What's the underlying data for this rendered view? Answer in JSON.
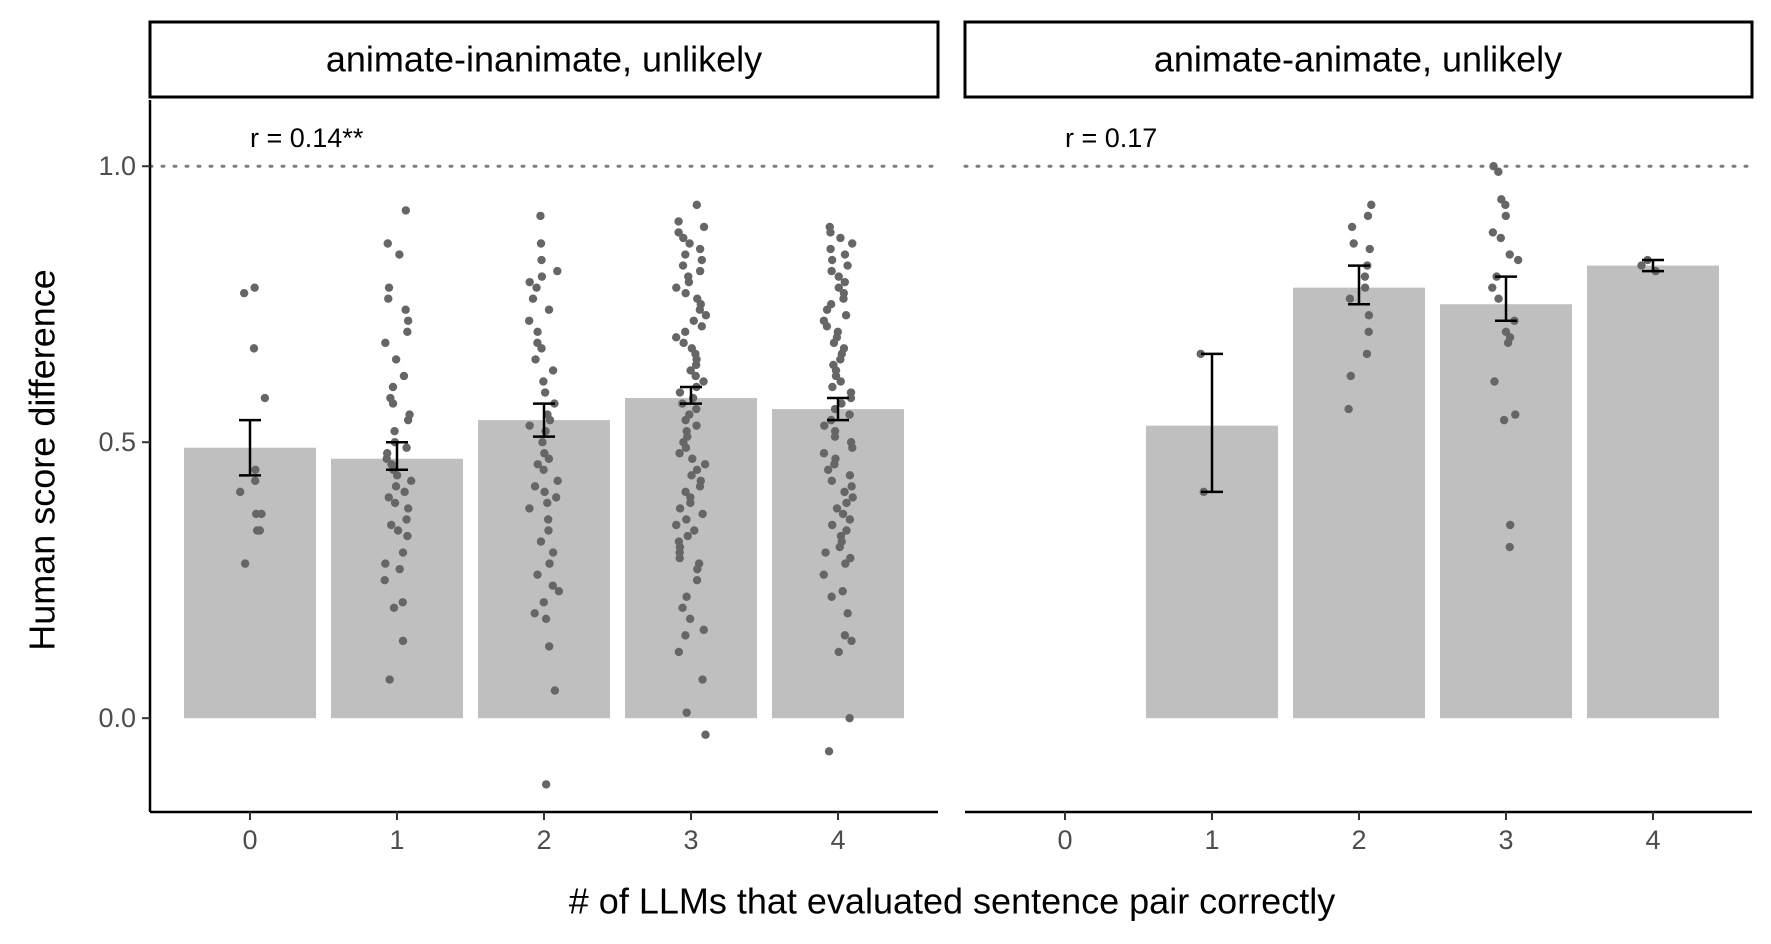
{
  "chart_data": {
    "type": "bar",
    "xlabel": "# of LLMs that evaluated sentence pair correctly",
    "ylabel": "Human score difference",
    "x_ticks": [
      "0",
      "1",
      "2",
      "3",
      "4"
    ],
    "y_ticks": [
      "0.0",
      "0.5",
      "1.0"
    ],
    "ylim": [
      -0.17,
      1.12
    ],
    "reference_line": {
      "y": 1.0,
      "style": "dotted"
    },
    "grid": false,
    "bar_color": "#bfbfbf",
    "point_color": "#666666",
    "errorbar_color": "#000000",
    "panels": [
      {
        "strip": "animate-inanimate, unlikely",
        "annotation": "r = 0.14**",
        "bars": [
          {
            "x": 0,
            "mean": 0.49,
            "ci": [
              0.44,
              0.54
            ],
            "points": [
              0.78,
              0.77,
              0.67,
              0.58,
              0.45,
              0.43,
              0.41,
              0.37,
              0.37,
              0.34,
              0.34,
              0.28
            ]
          },
          {
            "x": 1,
            "mean": 0.47,
            "ci": [
              0.45,
              0.5
            ],
            "points": [
              0.92,
              0.86,
              0.84,
              0.78,
              0.76,
              0.74,
              0.72,
              0.7,
              0.68,
              0.65,
              0.62,
              0.6,
              0.58,
              0.57,
              0.55,
              0.54,
              0.52,
              0.5,
              0.49,
              0.48,
              0.47,
              0.46,
              0.45,
              0.44,
              0.43,
              0.42,
              0.41,
              0.4,
              0.39,
              0.38,
              0.36,
              0.35,
              0.34,
              0.33,
              0.3,
              0.28,
              0.27,
              0.25,
              0.21,
              0.2,
              0.14,
              0.07
            ]
          },
          {
            "x": 2,
            "mean": 0.54,
            "ci": [
              0.51,
              0.57
            ],
            "points": [
              0.91,
              0.86,
              0.83,
              0.81,
              0.8,
              0.79,
              0.78,
              0.76,
              0.74,
              0.72,
              0.7,
              0.68,
              0.67,
              0.65,
              0.63,
              0.61,
              0.59,
              0.57,
              0.55,
              0.54,
              0.53,
              0.52,
              0.5,
              0.48,
              0.47,
              0.46,
              0.45,
              0.43,
              0.42,
              0.41,
              0.4,
              0.39,
              0.38,
              0.36,
              0.34,
              0.32,
              0.3,
              0.28,
              0.26,
              0.24,
              0.23,
              0.21,
              0.19,
              0.18,
              0.13,
              0.05,
              -0.12
            ]
          },
          {
            "x": 3,
            "mean": 0.58,
            "ci": [
              0.57,
              0.6
            ],
            "points": [
              0.93,
              0.9,
              0.89,
              0.88,
              0.87,
              0.86,
              0.85,
              0.84,
              0.83,
              0.82,
              0.81,
              0.8,
              0.79,
              0.78,
              0.77,
              0.76,
              0.75,
              0.74,
              0.73,
              0.72,
              0.71,
              0.7,
              0.69,
              0.68,
              0.67,
              0.66,
              0.65,
              0.64,
              0.63,
              0.62,
              0.61,
              0.6,
              0.59,
              0.58,
              0.57,
              0.56,
              0.55,
              0.54,
              0.53,
              0.52,
              0.51,
              0.5,
              0.49,
              0.48,
              0.47,
              0.46,
              0.45,
              0.44,
              0.43,
              0.42,
              0.41,
              0.4,
              0.39,
              0.38,
              0.37,
              0.36,
              0.35,
              0.34,
              0.33,
              0.32,
              0.31,
              0.3,
              0.29,
              0.28,
              0.27,
              0.25,
              0.22,
              0.2,
              0.18,
              0.16,
              0.15,
              0.12,
              0.07,
              0.01,
              -0.03
            ]
          },
          {
            "x": 4,
            "mean": 0.56,
            "ci": [
              0.54,
              0.58
            ],
            "points": [
              0.89,
              0.88,
              0.87,
              0.86,
              0.85,
              0.84,
              0.83,
              0.82,
              0.81,
              0.8,
              0.79,
              0.78,
              0.77,
              0.76,
              0.75,
              0.74,
              0.73,
              0.72,
              0.71,
              0.7,
              0.69,
              0.68,
              0.67,
              0.66,
              0.65,
              0.64,
              0.63,
              0.62,
              0.61,
              0.6,
              0.59,
              0.58,
              0.57,
              0.56,
              0.55,
              0.54,
              0.53,
              0.52,
              0.51,
              0.5,
              0.49,
              0.48,
              0.47,
              0.46,
              0.45,
              0.44,
              0.43,
              0.42,
              0.41,
              0.4,
              0.39,
              0.38,
              0.37,
              0.36,
              0.35,
              0.34,
              0.33,
              0.32,
              0.31,
              0.3,
              0.29,
              0.28,
              0.26,
              0.23,
              0.22,
              0.19,
              0.15,
              0.14,
              0.12,
              0.0,
              -0.06
            ]
          }
        ]
      },
      {
        "strip": "animate-animate, unlikely",
        "annotation": "r = 0.17",
        "bars": [
          {
            "x": 1,
            "mean": 0.53,
            "ci": [
              0.41,
              0.66
            ],
            "points": [
              0.66,
              0.41
            ]
          },
          {
            "x": 2,
            "mean": 0.78,
            "ci": [
              0.75,
              0.82
            ],
            "points": [
              0.93,
              0.91,
              0.89,
              0.86,
              0.85,
              0.82,
              0.8,
              0.78,
              0.76,
              0.73,
              0.7,
              0.66,
              0.62,
              0.56
            ]
          },
          {
            "x": 3,
            "mean": 0.75,
            "ci": [
              0.72,
              0.8
            ],
            "points": [
              1.0,
              0.99,
              0.94,
              0.93,
              0.91,
              0.88,
              0.87,
              0.84,
              0.83,
              0.8,
              0.78,
              0.76,
              0.72,
              0.7,
              0.69,
              0.68,
              0.61,
              0.55,
              0.54,
              0.35,
              0.31
            ]
          },
          {
            "x": 4,
            "mean": 0.82,
            "ci": [
              0.81,
              0.83
            ],
            "points": [
              0.83,
              0.82,
              0.81
            ]
          }
        ]
      }
    ]
  }
}
